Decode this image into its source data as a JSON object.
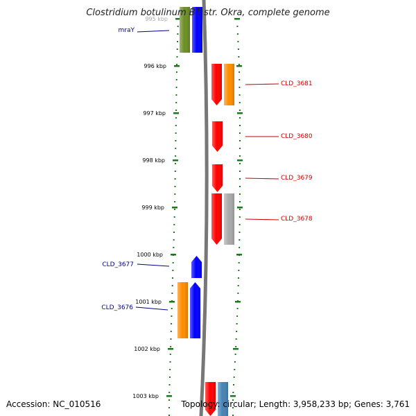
{
  "title": "Clostridium botulinum B1 str. Okra, complete genome",
  "footer": {
    "accession": "Accession: NC_010516",
    "summary": "Topology: circular; Length: 3,958,233 bp; Genes: 3,761"
  },
  "ruler": {
    "ticks": [
      "995 kbp",
      "996 kbp",
      "997 kbp",
      "998 kbp",
      "999 kbp",
      "1000 kbp",
      "1001 kbp",
      "1002 kbp",
      "1003 kbp"
    ],
    "color": "#1a7a1a"
  },
  "backbone_color": "#777777",
  "genes": [
    {
      "label": "mraY",
      "strand": "minus",
      "color": "#6b8e23"
    },
    {
      "label": "",
      "strand": "minus",
      "color": "#0000ff"
    },
    {
      "label": "CLD_3681",
      "strand": "plus",
      "color": "#ff0000"
    },
    {
      "label": "",
      "strand": "plus",
      "color": "#ff8c00"
    },
    {
      "label": "CLD_3680",
      "strand": "plus",
      "color": "#ff0000"
    },
    {
      "label": "CLD_3679",
      "strand": "plus",
      "color": "#ff0000"
    },
    {
      "label": "CLD_3678",
      "strand": "plus",
      "color": "#ff0000"
    },
    {
      "label": "",
      "strand": "plus",
      "color": "#aaaaaa"
    },
    {
      "label": "CLD_3677",
      "strand": "minus",
      "color": "#0000ff"
    },
    {
      "label": "CLD_3676",
      "strand": "minus",
      "color": "#ff8c00"
    },
    {
      "label": "",
      "strand": "minus",
      "color": "#0000ff"
    },
    {
      "label": "",
      "strand": "plus",
      "color": "#ff0000"
    },
    {
      "label": "",
      "strand": "plus",
      "color": "#4682b4"
    }
  ],
  "label_colors": {
    "minus": "#00008b",
    "plus": "#cc0000"
  }
}
